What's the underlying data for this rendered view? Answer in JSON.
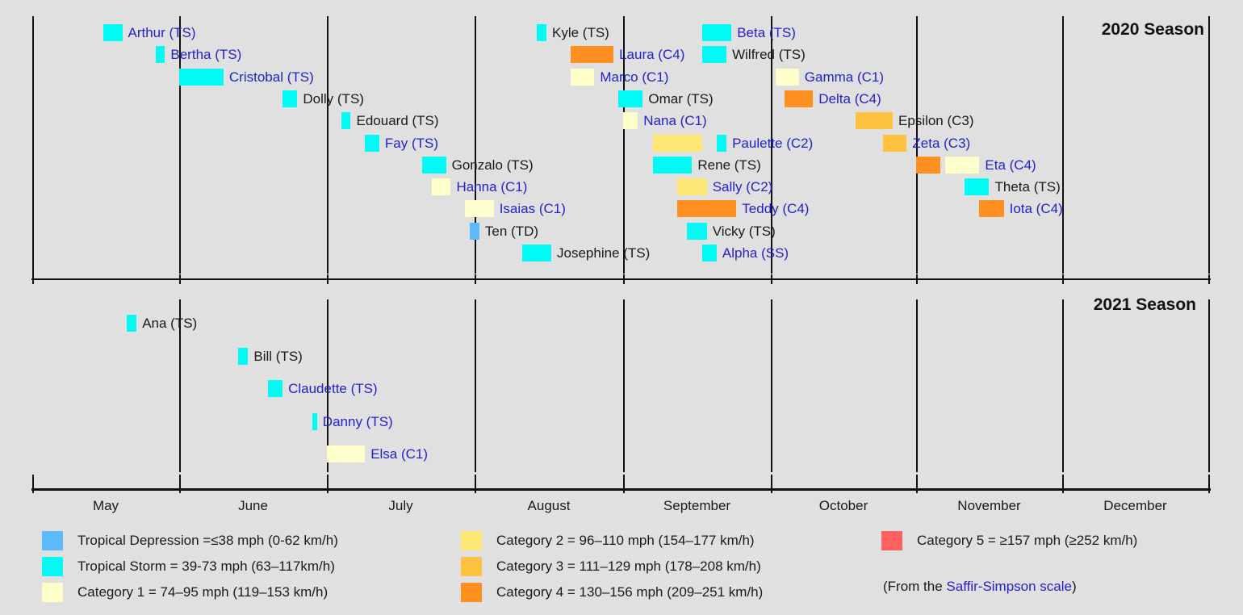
{
  "palette": {
    "background": "#e0e0e0",
    "axis": "#111111",
    "text": "#1a1a1a",
    "link_blue": "#2222cc",
    "categories": {
      "TD": "#5EBAFF",
      "TS": "#00FAF4",
      "C1": "#FFFFCC",
      "C2": "#FFE775",
      "C3": "#FFC140",
      "C4": "#FF8F20",
      "C5": "#FF6060"
    }
  },
  "chart_data": {
    "type": "timeline",
    "description": "Atlantic hurricane season storm timelines (Gantt-style), bars colored by peak Saffir-Simpson intensity",
    "x_axis": {
      "start": "May 1",
      "end": "December 31",
      "months": [
        "May",
        "June",
        "July",
        "August",
        "September",
        "October",
        "November",
        "December"
      ]
    },
    "panels": [
      {
        "title": "2020 Season",
        "storms": [
          {
            "name": "Arthur",
            "status": "TS",
            "label": "Arthur (TS)",
            "link": true,
            "row": 1,
            "segments": [
              {
                "cat": "TS",
                "from": [
                  5,
                  16
                ],
                "to": [
                  5,
                  19
                ]
              }
            ]
          },
          {
            "name": "Bertha",
            "status": "TS",
            "label": "Bertha (TS)",
            "link": true,
            "row": 2,
            "segments": [
              {
                "cat": "TS",
                "from": [
                  5,
                  27
                ],
                "to": [
                  5,
                  28
                ]
              }
            ]
          },
          {
            "name": "Cristobal",
            "status": "TS",
            "label": "Cristobal (TS)",
            "link": true,
            "row": 3,
            "segments": [
              {
                "cat": "TS",
                "from": [
                  6,
                  1
                ],
                "to": [
                  6,
                  9
                ]
              }
            ]
          },
          {
            "name": "Dolly",
            "status": "TS",
            "label": "Dolly (TS)",
            "link": false,
            "row": 4,
            "segments": [
              {
                "cat": "TS",
                "from": [
                  6,
                  22
                ],
                "to": [
                  6,
                  24
                ]
              }
            ]
          },
          {
            "name": "Edouard",
            "status": "TS",
            "label": "Edouard (TS)",
            "link": false,
            "row": 5,
            "segments": [
              {
                "cat": "TS",
                "from": [
                  7,
                  4
                ],
                "to": [
                  7,
                  5
                ]
              }
            ]
          },
          {
            "name": "Fay",
            "status": "TS",
            "label": "Fay (TS)",
            "link": true,
            "row": 6,
            "segments": [
              {
                "cat": "TS",
                "from": [
                  7,
                  9
                ],
                "to": [
                  7,
                  11
                ]
              }
            ]
          },
          {
            "name": "Gonzalo",
            "status": "TS",
            "label": "Gonzalo (TS)",
            "link": false,
            "row": 7,
            "segments": [
              {
                "cat": "TS",
                "from": [
                  7,
                  21
                ],
                "to": [
                  7,
                  25
                ]
              }
            ]
          },
          {
            "name": "Hanna",
            "status": "C1",
            "label": "Hanna (C1)",
            "link": true,
            "row": 8,
            "segments": [
              {
                "cat": "C1",
                "from": [
                  7,
                  23
                ],
                "to": [
                  7,
                  26
                ]
              }
            ]
          },
          {
            "name": "Isaias",
            "status": "C1",
            "label": "Isaias (C1)",
            "link": true,
            "row": 9,
            "segments": [
              {
                "cat": "C1",
                "from": [
                  7,
                  30
                ],
                "to": [
                  8,
                  4
                ]
              }
            ]
          },
          {
            "name": "Ten",
            "status": "TD",
            "label": "Ten (TD)",
            "link": false,
            "row": 10,
            "segments": [
              {
                "cat": "TD",
                "from": [
                  7,
                  31
                ],
                "to": [
                  8,
                  1
                ]
              }
            ]
          },
          {
            "name": "Josephine",
            "status": "TS",
            "label": "Josephine (TS)",
            "link": false,
            "row": 11,
            "segments": [
              {
                "cat": "TS",
                "from": [
                  8,
                  11
                ],
                "to": [
                  8,
                  16
                ]
              }
            ]
          },
          {
            "name": "Kyle",
            "status": "TS",
            "label": "Kyle (TS)",
            "link": false,
            "row": 1,
            "segments": [
              {
                "cat": "TS",
                "from": [
                  8,
                  14
                ],
                "to": [
                  8,
                  15
                ]
              }
            ]
          },
          {
            "name": "Laura",
            "status": "C4",
            "label": "Laura (C4)",
            "link": true,
            "row": 2,
            "segments": [
              {
                "cat": "C4",
                "from": [
                  8,
                  21
                ],
                "to": [
                  8,
                  29
                ]
              }
            ]
          },
          {
            "name": "Marco",
            "status": "C1",
            "label": "Marco (C1)",
            "link": true,
            "row": 3,
            "segments": [
              {
                "cat": "C1",
                "from": [
                  8,
                  21
                ],
                "to": [
                  8,
                  25
                ]
              }
            ]
          },
          {
            "name": "Omar",
            "status": "TS",
            "label": "Omar (TS)",
            "link": false,
            "row": 4,
            "segments": [
              {
                "cat": "TS",
                "from": [
                  8,
                  31
                ],
                "to": [
                  9,
                  4
                ]
              }
            ]
          },
          {
            "name": "Nana",
            "status": "C1",
            "label": "Nana (C1)",
            "link": true,
            "row": 5,
            "segments": [
              {
                "cat": "C1",
                "from": [
                  9,
                  1
                ],
                "to": [
                  9,
                  3
                ]
              }
            ]
          },
          {
            "name": "Paulette",
            "status": "C2",
            "label": "Paulette (C2)",
            "link": true,
            "row": 6,
            "segments": [
              {
                "cat": "C2",
                "from": [
                  9,
                  7
                ],
                "to": [
                  9,
                  16
                ]
              },
              {
                "cat": "TS",
                "from": [
                  9,
                  20
                ],
                "to": [
                  9,
                  21
                ]
              }
            ]
          },
          {
            "name": "Rene",
            "status": "TS",
            "label": "Rene (TS)",
            "link": false,
            "row": 7,
            "segments": [
              {
                "cat": "TS",
                "from": [
                  9,
                  7
                ],
                "to": [
                  9,
                  14
                ]
              }
            ]
          },
          {
            "name": "Sally",
            "status": "C2",
            "label": "Sally (C2)",
            "link": true,
            "row": 8,
            "segments": [
              {
                "cat": "C2",
                "from": [
                  9,
                  12
                ],
                "to": [
                  9,
                  17
                ]
              }
            ]
          },
          {
            "name": "Teddy",
            "status": "C4",
            "label": "Teddy (C4)",
            "link": true,
            "row": 9,
            "segments": [
              {
                "cat": "C4",
                "from": [
                  9,
                  12
                ],
                "to": [
                  9,
                  23
                ]
              }
            ]
          },
          {
            "name": "Vicky",
            "status": "TS",
            "label": "Vicky (TS)",
            "link": false,
            "row": 10,
            "segments": [
              {
                "cat": "TS",
                "from": [
                  9,
                  14
                ],
                "to": [
                  9,
                  17
                ]
              }
            ]
          },
          {
            "name": "Alpha",
            "status": "SS",
            "label": "Alpha (SS)",
            "link": true,
            "row": 11,
            "segments": [
              {
                "cat": "TS",
                "from": [
                  9,
                  17
                ],
                "to": [
                  9,
                  19
                ]
              }
            ]
          },
          {
            "name": "Beta",
            "status": "TS",
            "label": "Beta (TS)",
            "link": true,
            "row": 1,
            "segments": [
              {
                "cat": "TS",
                "from": [
                  9,
                  17
                ],
                "to": [
                  9,
                  22
                ]
              }
            ]
          },
          {
            "name": "Wilfred",
            "status": "TS",
            "label": "Wilfred (TS)",
            "link": false,
            "row": 2,
            "segments": [
              {
                "cat": "TS",
                "from": [
                  9,
                  17
                ],
                "to": [
                  9,
                  21
                ]
              }
            ]
          },
          {
            "name": "Gamma",
            "status": "C1",
            "label": "Gamma (C1)",
            "link": true,
            "row": 3,
            "segments": [
              {
                "cat": "C1",
                "from": [
                  10,
                  2
                ],
                "to": [
                  10,
                  6
                ]
              }
            ]
          },
          {
            "name": "Delta",
            "status": "C4",
            "label": "Delta (C4)",
            "link": true,
            "row": 4,
            "segments": [
              {
                "cat": "C4",
                "from": [
                  10,
                  4
                ],
                "to": [
                  10,
                  9
                ]
              }
            ]
          },
          {
            "name": "Epsilon",
            "status": "C3",
            "label": "Epsilon (C3)",
            "link": false,
            "row": 5,
            "segments": [
              {
                "cat": "C3",
                "from": [
                  10,
                  19
                ],
                "to": [
                  10,
                  26
                ]
              }
            ]
          },
          {
            "name": "Zeta",
            "status": "C3",
            "label": "Zeta (C3)",
            "link": true,
            "row": 6,
            "segments": [
              {
                "cat": "C3",
                "from": [
                  10,
                  25
                ],
                "to": [
                  10,
                  29
                ]
              }
            ]
          },
          {
            "name": "Eta",
            "status": "C4",
            "label": "Eta (C4)",
            "link": true,
            "row": 7,
            "segments": [
              {
                "cat": "C4",
                "from": [
                  11,
                  1
                ],
                "to": [
                  11,
                  5
                ]
              },
              {
                "cat": "C1",
                "from": [
                  11,
                  7
                ],
                "to": [
                  11,
                  13
                ]
              }
            ]
          },
          {
            "name": "Theta",
            "status": "TS",
            "label": "Theta (TS)",
            "link": false,
            "row": 8,
            "segments": [
              {
                "cat": "TS",
                "from": [
                  11,
                  11
                ],
                "to": [
                  11,
                  15
                ]
              }
            ]
          },
          {
            "name": "Iota",
            "status": "C4",
            "label": "Iota (C4)",
            "link": true,
            "row": 9,
            "segments": [
              {
                "cat": "C4",
                "from": [
                  11,
                  14
                ],
                "to": [
                  11,
                  18
                ]
              }
            ]
          }
        ]
      },
      {
        "title": "2021 Season",
        "storms": [
          {
            "name": "Ana",
            "status": "TS",
            "label": "Ana (TS)",
            "link": false,
            "row": 1,
            "segments": [
              {
                "cat": "TS",
                "from": [
                  5,
                  21
                ],
                "to": [
                  5,
                  22
                ]
              }
            ]
          },
          {
            "name": "Bill",
            "status": "TS",
            "label": "Bill (TS)",
            "link": false,
            "row": 2,
            "segments": [
              {
                "cat": "TS",
                "from": [
                  6,
                  13
                ],
                "to": [
                  6,
                  14
                ]
              }
            ]
          },
          {
            "name": "Claudette",
            "status": "TS",
            "label": "Claudette (TS)",
            "link": true,
            "row": 3,
            "segments": [
              {
                "cat": "TS",
                "from": [
                  6,
                  19
                ],
                "to": [
                  6,
                  21
                ]
              }
            ]
          },
          {
            "name": "Danny",
            "status": "TS",
            "label": "Danny (TS)",
            "link": true,
            "row": 4,
            "segments": [
              {
                "cat": "TS",
                "from": [
                  6,
                  28
                ],
                "to": [
                  6,
                  28
                ]
              }
            ]
          },
          {
            "name": "Elsa",
            "status": "C1",
            "label": "Elsa (C1)",
            "link": true,
            "row": 5,
            "segments": [
              {
                "cat": "C1",
                "from": [
                  7,
                  1
                ],
                "to": [
                  7,
                  8
                ]
              }
            ]
          }
        ]
      }
    ],
    "legend": [
      {
        "cat": "TD",
        "label": "Tropical Depression =≤38 mph (0-62 km/h)"
      },
      {
        "cat": "TS",
        "label": "Tropical Storm = 39-73 mph (63–117km/h)"
      },
      {
        "cat": "C1",
        "label": "Category 1 = 74–95 mph (119–153 km/h)"
      },
      {
        "cat": "C2",
        "label": "Category 2 = 96–110 mph (154–177 km/h)"
      },
      {
        "cat": "C3",
        "label": "Category 3 = 111–129 mph (178–208 km/h)"
      },
      {
        "cat": "C4",
        "label": "Category 4 = 130–156 mph (209–251 km/h)"
      },
      {
        "cat": "C5",
        "label": "Category 5 = ≥157 mph (≥252 km/h)"
      }
    ],
    "legend_note": {
      "prefix": "(From the ",
      "link": "Saffir-Simpson scale",
      "suffix": ")"
    }
  }
}
